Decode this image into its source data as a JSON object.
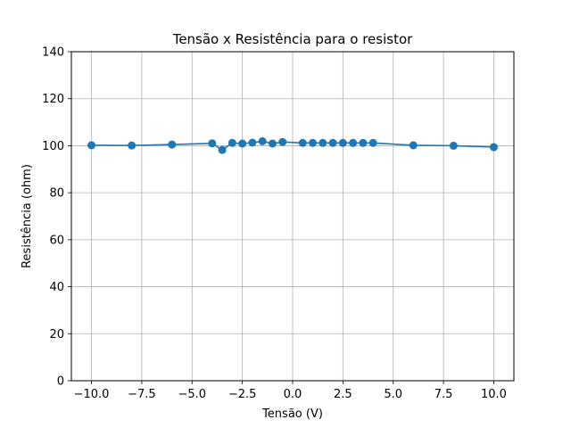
{
  "chart_data": {
    "type": "line",
    "title": "Tensão x Resistência para o resistor",
    "xlabel": "Tensão (V)",
    "ylabel": "Resistência (ohm)",
    "xlim": [
      -11,
      11
    ],
    "ylim": [
      0,
      140
    ],
    "xticks": [
      -10.0,
      -7.5,
      -5.0,
      -2.5,
      0.0,
      2.5,
      5.0,
      7.5,
      10.0
    ],
    "xtick_labels": [
      "−10.0",
      "−7.5",
      "−5.0",
      "−2.5",
      "0.0",
      "2.5",
      "5.0",
      "7.5",
      "10.0"
    ],
    "yticks": [
      0,
      20,
      40,
      60,
      80,
      100,
      120,
      140
    ],
    "ytick_labels": [
      "0",
      "20",
      "40",
      "60",
      "80",
      "100",
      "120",
      "140"
    ],
    "grid": true,
    "color": "#1f77b4",
    "marker": "circle",
    "series": [
      {
        "x": [
          -10,
          -8,
          -6,
          -4,
          -3.5,
          -3,
          -2.5,
          -2,
          -1.5,
          -1,
          -0.5,
          0.5,
          1,
          1.5,
          2,
          2.5,
          3,
          3.5,
          4,
          6,
          8,
          10
        ],
        "y": [
          100.2,
          100.1,
          100.5,
          101.0,
          98.2,
          101.2,
          100.9,
          101.3,
          101.9,
          100.9,
          101.6,
          101.2,
          101.2,
          101.2,
          101.2,
          101.2,
          101.2,
          101.2,
          101.2,
          100.2,
          100.0,
          99.4
        ]
      }
    ]
  }
}
